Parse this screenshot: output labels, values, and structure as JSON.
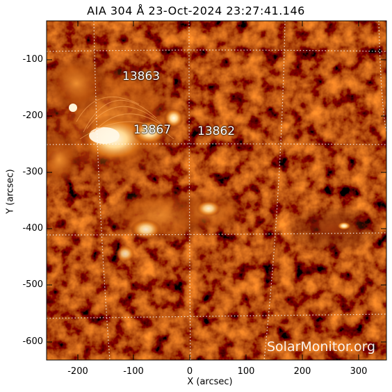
{
  "title": "AIA 304 Å 23-Oct-2024 23:27:41.146",
  "image": {
    "instrument": "AIA",
    "wavelength": "304 Å",
    "colors": {
      "background": "#0a0200",
      "dark": "#3a0a00",
      "mid": "#8a2a00",
      "bright": "#d86a10",
      "core": "#fff4d8"
    }
  },
  "axes": {
    "x_title": "X (arcsec)",
    "y_title": "Y (arcsec)",
    "x_ticks": [
      "-200",
      "-100",
      "0",
      "100",
      "200",
      "300"
    ],
    "y_ticks": [
      "-100",
      "-200",
      "-300",
      "-400",
      "-500",
      "-600"
    ],
    "x_range": [
      -255,
      345
    ],
    "y_range": [
      -632,
      -34
    ]
  },
  "active_regions": [
    {
      "number": "13863",
      "x": -85,
      "y": -130
    },
    {
      "number": "13867",
      "x": -65,
      "y": -212
    },
    {
      "number": "13862",
      "x": 50,
      "y": -214
    }
  ],
  "watermark": "SolarMonitor.org"
}
